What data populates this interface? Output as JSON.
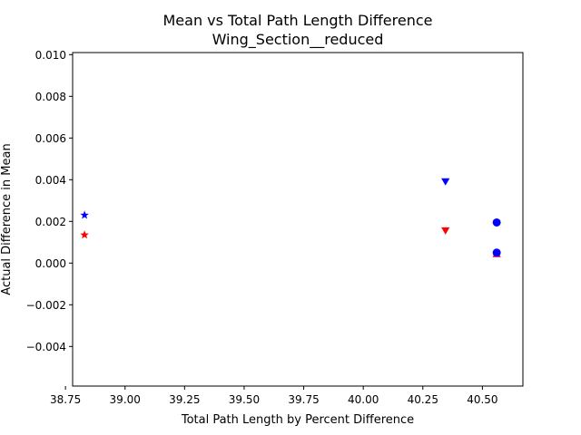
{
  "chart_data": {
    "type": "scatter",
    "title": "Mean vs Total Path Length Difference",
    "subtitle": "Wing_Section__reduced",
    "xlabel": "Total Path Length by Percent Difference",
    "ylabel": "Actual Difference in Mean",
    "xlim": [
      38.78,
      40.67
    ],
    "ylim": [
      -0.0059,
      0.0101
    ],
    "x_ticks": [
      38.75,
      39.0,
      39.25,
      39.5,
      39.75,
      40.0,
      40.25,
      40.5
    ],
    "x_tick_labels": [
      "38.75",
      "39.00",
      "39.25",
      "39.50",
      "39.75",
      "40.00",
      "40.25",
      "40.50"
    ],
    "y_ticks": [
      -0.004,
      -0.002,
      0.0,
      0.002,
      0.004,
      0.006,
      0.008,
      0.01
    ],
    "y_tick_labels": [
      "−0.004",
      "−0.002",
      "0.000",
      "0.002",
      "0.004",
      "0.006",
      "0.008",
      "0.010"
    ],
    "grid": false,
    "legend": "none",
    "points": [
      {
        "x": 38.83,
        "y": 0.0023,
        "marker": "star",
        "color": "#0000ff"
      },
      {
        "x": 38.83,
        "y": 0.00135,
        "marker": "star",
        "color": "#ff0000"
      },
      {
        "x": 40.345,
        "y": 0.0039,
        "marker": "triangle-down",
        "color": "#0000ff"
      },
      {
        "x": 40.345,
        "y": 0.00155,
        "marker": "triangle-down",
        "color": "#ff0000"
      },
      {
        "x": 40.56,
        "y": 0.00195,
        "marker": "circle",
        "color": "#0000ff"
      },
      {
        "x": 40.56,
        "y": 0.00045,
        "marker": "triangle-up",
        "color": "#ff0000"
      },
      {
        "x": 40.56,
        "y": 0.0005,
        "marker": "circle",
        "color": "#0000ff"
      }
    ]
  }
}
